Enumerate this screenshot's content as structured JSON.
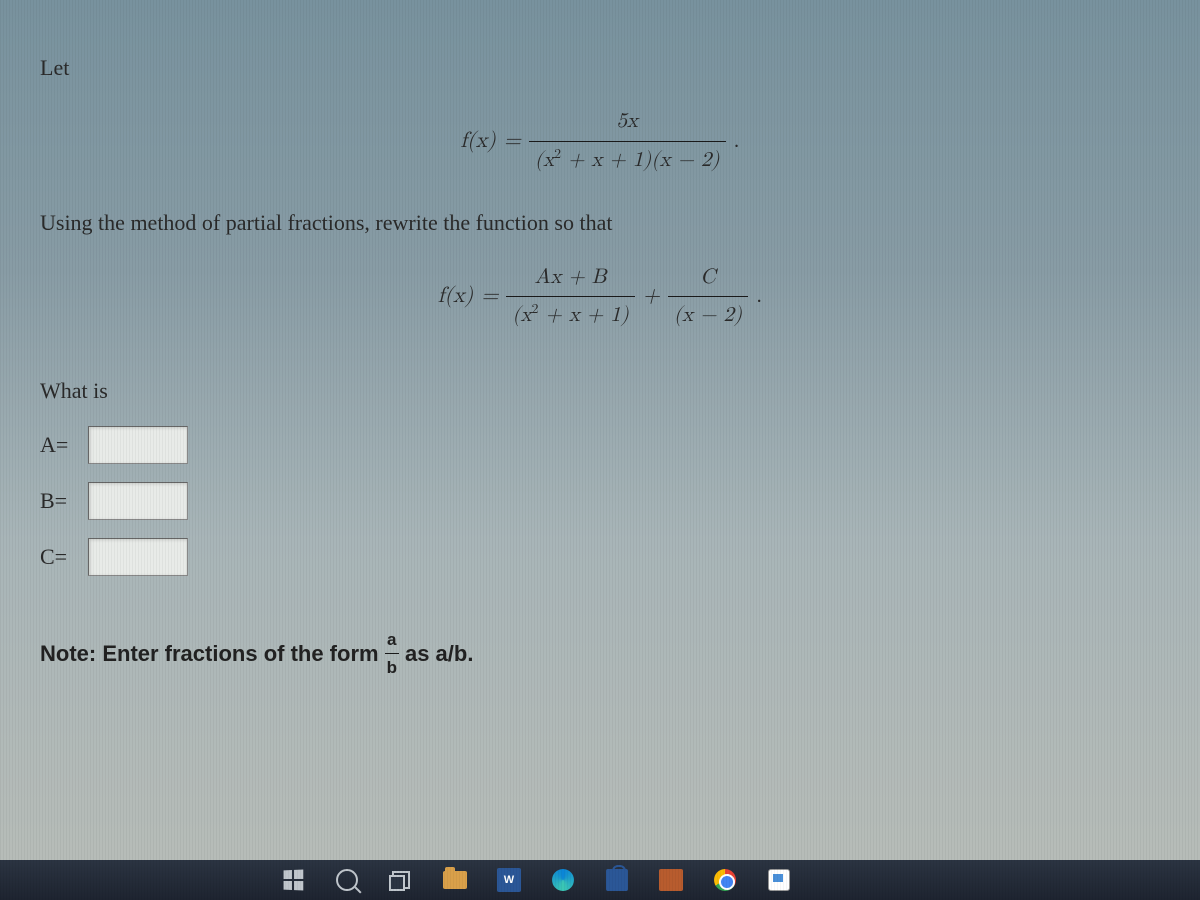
{
  "problem": {
    "intro": "Let",
    "equation1": {
      "lhs": "f(x)",
      "eq": "=",
      "numerator": "5x",
      "denom_part1": "(x",
      "denom_exp": "2",
      "denom_part2": " + x + 1)(x − 2)",
      "period": "."
    },
    "prompt": "Using the method of partial fractions, rewrite the function so that",
    "equation2": {
      "lhs": "f(x)",
      "eq": "=",
      "term1_num": "Ax + B",
      "term1_den_a": "(x",
      "term1_exp": "2",
      "term1_den_b": " + x + 1)",
      "plus": "+",
      "term2_num": "C",
      "term2_den": "(x − 2)",
      "period": "."
    },
    "whatis": "What is"
  },
  "inputs": {
    "A": {
      "label": "A="
    },
    "B": {
      "label": "B="
    },
    "C": {
      "label": "C="
    }
  },
  "note": {
    "prefix": "Note: Enter fractions of the form ",
    "frac_num": "a",
    "frac_den": "b",
    "suffix": " as a/b."
  },
  "taskbar": {
    "word_label": "W"
  },
  "colors": {
    "bg_top": "#78929e",
    "bg_bottom": "#b8bdb8",
    "text": "#2a2a2a",
    "input_bg": "#e8ebe8",
    "taskbar_bg": "#2b3442"
  }
}
